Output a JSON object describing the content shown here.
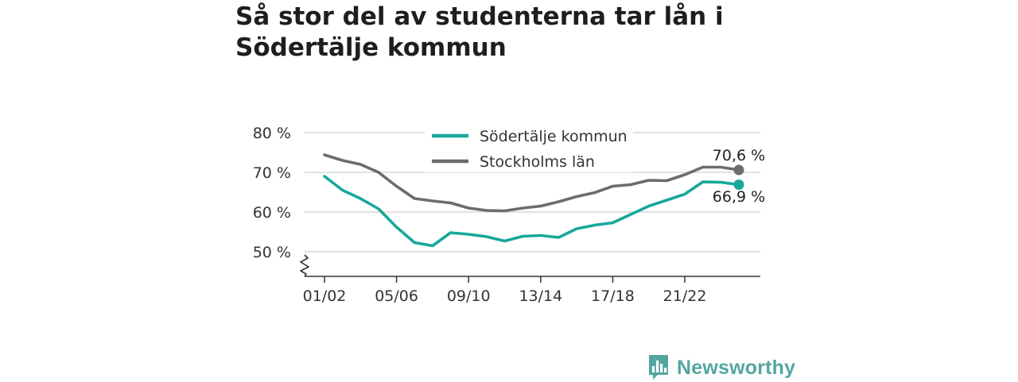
{
  "title": "Så stor del av studenterna tar lån i Södertälje kommun",
  "brand": {
    "name": "Newsworthy",
    "logo_icon": "bar-chart-speech-bubble-icon",
    "color": "#53a6a0"
  },
  "chart_data": {
    "type": "line",
    "x": [
      "01/02",
      "02/03",
      "03/04",
      "04/05",
      "05/06",
      "06/07",
      "07/08",
      "08/09",
      "09/10",
      "10/11",
      "11/12",
      "12/13",
      "13/14",
      "14/15",
      "15/16",
      "16/17",
      "17/18",
      "18/19",
      "19/20",
      "20/21",
      "21/22",
      "22/23",
      "23/24",
      "24/25"
    ],
    "xtick_labels": [
      "01/02",
      "05/06",
      "09/10",
      "13/14",
      "17/18",
      "21/22"
    ],
    "ytick_values": [
      50,
      60,
      70,
      80
    ],
    "ytick_labels": [
      "50 %",
      "60 %",
      "70 %",
      "80 %"
    ],
    "ylim": [
      44,
      80
    ],
    "axis_break": true,
    "grid": true,
    "legend_position": "top-center",
    "series": [
      {
        "name": "Södertälje kommun",
        "color": "#17a89a",
        "values": [
          69.0,
          65.5,
          63.4,
          60.8,
          56.2,
          52.3,
          51.5,
          54.8,
          54.4,
          53.8,
          52.7,
          53.9,
          54.1,
          53.6,
          55.8,
          56.7,
          57.3,
          59.4,
          61.5,
          63.0,
          64.5,
          67.6,
          67.5,
          66.9
        ],
        "end_label": "66,9 %"
      },
      {
        "name": "Stockholms län",
        "color": "#6b6b72",
        "values": [
          74.4,
          73.0,
          72.0,
          70.0,
          66.5,
          63.4,
          62.8,
          62.3,
          61.0,
          60.4,
          60.3,
          61.0,
          61.5,
          62.6,
          63.9,
          64.9,
          66.5,
          66.9,
          68.0,
          67.9,
          69.4,
          71.3,
          71.3,
          70.6
        ],
        "end_label": "70,6 %"
      }
    ]
  }
}
